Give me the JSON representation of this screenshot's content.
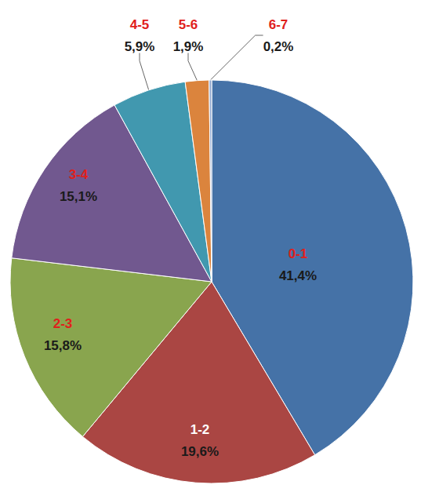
{
  "chart_data": {
    "type": "pie",
    "categories": [
      "0-1",
      "1-2",
      "2-3",
      "3-4",
      "4-5",
      "5-6",
      "6-7"
    ],
    "values": [
      41.4,
      19.6,
      15.8,
      15.1,
      5.9,
      1.9,
      0.2
    ],
    "value_labels": [
      "41,4%",
      "19,6%",
      "15,8%",
      "15,1%",
      "5,9%",
      "1,9%",
      "0,2%"
    ],
    "colors": [
      "#4572A7",
      "#AA4643",
      "#89A54E",
      "#71588F",
      "#4198AF",
      "#DB843D",
      "#93A9CF"
    ],
    "data_labels": true
  }
}
